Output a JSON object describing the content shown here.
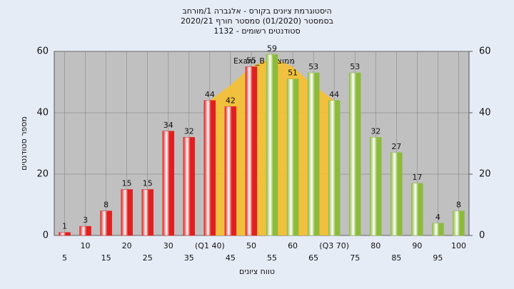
{
  "chart_data": {
    "type": "bar",
    "title": [
      "היסטוגרמת ציונים בקורס - אלגברה 1/מורחב",
      "בסמסטר (01/2020) סמסטר חורף 2020/21",
      "סטודנטים רשומים - 1132"
    ],
    "x_label": "טווח ציונים",
    "y_label": "מספר סטודנטים",
    "annotation": "ממוצע : Exam_B",
    "categories": [
      "5",
      "10",
      "15",
      "20",
      "25",
      "30",
      "35",
      "(Q1 40)",
      "45",
      "50",
      "55",
      "60",
      "65",
      "(Q3 70)",
      "75",
      "80",
      "85",
      "90",
      "95",
      "100"
    ],
    "values": [
      1,
      3,
      8,
      15,
      15,
      34,
      32,
      44,
      42,
      55,
      59,
      51,
      53,
      44,
      53,
      32,
      27,
      17,
      4,
      8
    ],
    "colors": [
      "#e02020",
      "#e02020",
      "#e02020",
      "#e02020",
      "#e02020",
      "#e02020",
      "#e02020",
      "#e02020",
      "#e02020",
      "#e02020",
      "#8cbb3c",
      "#8cbb3c",
      "#8cbb3c",
      "#8cbb3c",
      "#8cbb3c",
      "#8cbb3c",
      "#8cbb3c",
      "#8cbb3c",
      "#8cbb3c",
      "#8cbb3c"
    ],
    "curve": {
      "x": [
        40,
        45,
        50,
        55,
        60,
        65,
        70
      ],
      "values": [
        44,
        49,
        55,
        58,
        55,
        49,
        44
      ],
      "color": "#f5c030"
    },
    "ylim": [
      0,
      60
    ],
    "yticks": [
      0,
      20,
      40,
      60
    ],
    "y2lim": [
      0,
      60
    ],
    "y2ticks": [
      0,
      20,
      40,
      60
    ],
    "grid": true
  }
}
